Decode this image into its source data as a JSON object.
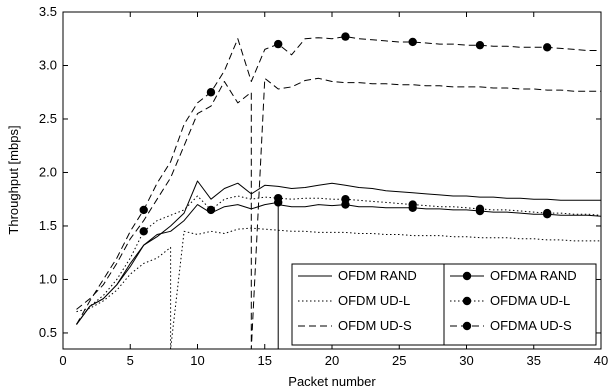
{
  "chart_data": {
    "type": "line",
    "title": "",
    "xlabel": "Packet number",
    "ylabel": "Throughput [mbps]",
    "xlim": [
      0,
      40
    ],
    "ylim": [
      0.35,
      3.5
    ],
    "xticks": [
      0,
      5,
      10,
      15,
      20,
      25,
      30,
      35,
      40
    ],
    "yticks": [
      0.5,
      1.0,
      1.5,
      2.0,
      2.5,
      3.0,
      3.5
    ],
    "ytick_labels": [
      "0.5",
      "1.0",
      "1.5",
      "2.0",
      "2.5",
      "3.0",
      "3.5"
    ],
    "grid": false,
    "legend": {
      "placement": "bottom-right",
      "columns": 2
    },
    "series": [
      {
        "name": "OFDM RAND",
        "style": "solid",
        "marker": false,
        "x": [
          1,
          2,
          3,
          4,
          5,
          6,
          7,
          8,
          9,
          10,
          11,
          12,
          13,
          14,
          15,
          16,
          17,
          18,
          19,
          20,
          21,
          22,
          23,
          24,
          25,
          26,
          27,
          28,
          29,
          30,
          31,
          32,
          33,
          34,
          35,
          36,
          37,
          38,
          39,
          40
        ],
        "y": [
          0.58,
          0.75,
          0.82,
          0.95,
          1.15,
          1.32,
          1.4,
          1.5,
          1.62,
          1.92,
          1.75,
          1.85,
          1.9,
          1.8,
          1.88,
          1.87,
          1.85,
          1.86,
          1.88,
          1.9,
          1.88,
          1.86,
          1.85,
          1.83,
          1.82,
          1.81,
          1.8,
          1.79,
          1.78,
          1.78,
          1.77,
          1.77,
          1.76,
          1.76,
          1.75,
          1.75,
          1.74,
          1.74,
          1.74,
          1.74
        ]
      },
      {
        "name": "OFDM UD-L",
        "style": "dotted",
        "marker": false,
        "x": [
          1,
          2,
          3,
          4,
          5,
          6,
          7,
          8,
          8,
          9,
          10,
          11,
          12,
          13,
          14,
          15,
          16,
          17,
          18,
          19,
          20,
          21,
          22,
          23,
          24,
          25,
          26,
          27,
          28,
          29,
          30,
          31,
          32,
          33,
          34,
          35,
          36,
          37,
          38,
          39,
          40
        ],
        "y": [
          0.7,
          0.73,
          0.8,
          0.9,
          1.05,
          1.15,
          1.2,
          1.3,
          0.35,
          1.45,
          1.42,
          1.45,
          1.43,
          1.47,
          1.48,
          1.47,
          1.46,
          1.45,
          1.45,
          1.44,
          1.44,
          1.44,
          1.43,
          1.43,
          1.42,
          1.42,
          1.41,
          1.41,
          1.41,
          1.4,
          1.4,
          1.39,
          1.39,
          1.39,
          1.38,
          1.38,
          1.37,
          1.37,
          1.36,
          1.36,
          1.36
        ]
      },
      {
        "name": "OFDM UD-S",
        "style": "dashed",
        "marker": false,
        "x": [
          1,
          2,
          3,
          4,
          5,
          6,
          7,
          8,
          9,
          10,
          11,
          12,
          13,
          14,
          14,
          15,
          16,
          17,
          18,
          19,
          20,
          21,
          22,
          23,
          24,
          25,
          26,
          27,
          28,
          29,
          30,
          31,
          32,
          33,
          34,
          35,
          36,
          37,
          38,
          39,
          40
        ],
        "y": [
          0.72,
          0.82,
          0.95,
          1.15,
          1.38,
          1.55,
          1.75,
          1.95,
          2.25,
          2.55,
          2.62,
          2.85,
          2.65,
          2.75,
          0.35,
          2.88,
          2.78,
          2.8,
          2.86,
          2.88,
          2.85,
          2.84,
          2.84,
          2.83,
          2.83,
          2.82,
          2.82,
          2.81,
          2.81,
          2.8,
          2.8,
          2.8,
          2.79,
          2.79,
          2.78,
          2.78,
          2.77,
          2.77,
          2.76,
          2.76,
          2.76
        ]
      },
      {
        "name": "OFDMA RAND",
        "style": "solid",
        "marker": true,
        "x": [
          1,
          2,
          3,
          4,
          5,
          6,
          7,
          8,
          9,
          10,
          11,
          12,
          13,
          14,
          15,
          16,
          16,
          16,
          17,
          18,
          19,
          20,
          21,
          22,
          23,
          24,
          25,
          26,
          27,
          28,
          29,
          30,
          31,
          32,
          33,
          34,
          35,
          36,
          37,
          38,
          39,
          40
        ],
        "y": [
          0.58,
          0.75,
          0.82,
          0.95,
          1.12,
          1.32,
          1.42,
          1.45,
          1.55,
          1.7,
          1.62,
          1.68,
          1.7,
          1.66,
          1.7,
          1.72,
          0.35,
          1.7,
          1.68,
          1.68,
          1.7,
          1.69,
          1.7,
          1.68,
          1.68,
          1.67,
          1.67,
          1.67,
          1.66,
          1.66,
          1.65,
          1.65,
          1.64,
          1.63,
          1.63,
          1.62,
          1.61,
          1.61,
          1.6,
          1.6,
          1.6,
          1.59
        ],
        "marker_x": [
          16,
          21,
          26,
          31,
          36
        ],
        "marker_y": [
          1.72,
          1.7,
          1.67,
          1.64,
          1.61
        ]
      },
      {
        "name": "OFDMA UD-L",
        "style": "dotted",
        "marker": true,
        "x": [
          1,
          2,
          3,
          4,
          5,
          6,
          7,
          8,
          9,
          10,
          11,
          12,
          13,
          14,
          15,
          16,
          17,
          18,
          19,
          20,
          21,
          22,
          23,
          24,
          25,
          26,
          27,
          28,
          29,
          30,
          31,
          32,
          33,
          34,
          35,
          36,
          37,
          38,
          39,
          40
        ],
        "y": [
          0.58,
          0.75,
          0.85,
          1.0,
          1.2,
          1.45,
          1.55,
          1.6,
          1.65,
          1.78,
          1.65,
          1.75,
          1.78,
          1.75,
          1.77,
          1.76,
          1.75,
          1.76,
          1.76,
          1.75,
          1.75,
          1.74,
          1.73,
          1.72,
          1.71,
          1.7,
          1.69,
          1.68,
          1.68,
          1.67,
          1.66,
          1.65,
          1.65,
          1.64,
          1.63,
          1.62,
          1.62,
          1.61,
          1.61,
          1.6
        ],
        "marker_x": [
          6,
          11,
          16,
          21,
          26,
          31,
          36
        ],
        "marker_y": [
          1.45,
          1.65,
          1.76,
          1.75,
          1.7,
          1.66,
          1.62
        ]
      },
      {
        "name": "OFDMA UD-S",
        "style": "dashed",
        "marker": true,
        "x": [
          1,
          2,
          3,
          4,
          5,
          6,
          7,
          8,
          9,
          10,
          11,
          12,
          13,
          14,
          15,
          16,
          17,
          18,
          19,
          20,
          21,
          22,
          23,
          24,
          25,
          26,
          27,
          28,
          29,
          30,
          31,
          32,
          33,
          34,
          35,
          36,
          37,
          38,
          39,
          40
        ],
        "y": [
          0.58,
          0.8,
          1.0,
          1.2,
          1.45,
          1.65,
          1.9,
          2.1,
          2.45,
          2.65,
          2.75,
          2.95,
          3.25,
          2.85,
          3.15,
          3.2,
          3.1,
          3.25,
          3.26,
          3.25,
          3.27,
          3.25,
          3.24,
          3.23,
          3.22,
          3.22,
          3.21,
          3.2,
          3.2,
          3.19,
          3.19,
          3.18,
          3.18,
          3.17,
          3.17,
          3.17,
          3.16,
          3.15,
          3.14,
          3.14
        ],
        "marker_x": [
          6,
          11,
          16,
          21,
          26,
          31,
          36
        ],
        "marker_y": [
          1.65,
          2.75,
          3.2,
          3.27,
          3.22,
          3.19,
          3.17
        ]
      }
    ]
  }
}
